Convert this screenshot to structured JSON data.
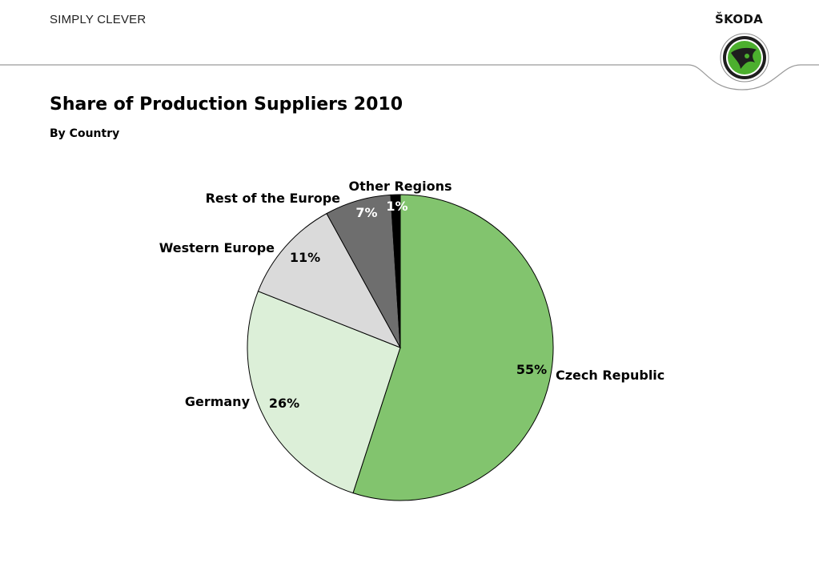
{
  "header": {
    "slogan": "SIMPLY CLEVER",
    "brand": "ŠKODA"
  },
  "colors": {
    "rule": "#9a9a9a",
    "logo_ring": "#222222",
    "logo_green": "#4caf2e"
  },
  "chart_data": {
    "type": "pie",
    "title": "Share of Production Suppliers 2010",
    "subtitle": "By Country",
    "slices": [
      {
        "name": "Czech Republic",
        "value": 55,
        "label": "55%",
        "color": "#82c46e",
        "text_color": "#000000"
      },
      {
        "name": "Germany",
        "value": 26,
        "label": "26%",
        "color": "#dcefd8",
        "text_color": "#000000"
      },
      {
        "name": "Western Europe",
        "value": 11,
        "label": "11%",
        "color": "#dadada",
        "text_color": "#000000"
      },
      {
        "name": "Rest of the Europe",
        "value": 7,
        "label": "7%",
        "color": "#6e6e6e",
        "text_color": "#ffffff"
      },
      {
        "name": "Other Regions",
        "value": 1,
        "label": "1%",
        "color": "#000000",
        "text_color": "#ffffff"
      }
    ],
    "start_angle": "12 o'clock",
    "direction": "clockwise",
    "legend": "none"
  }
}
